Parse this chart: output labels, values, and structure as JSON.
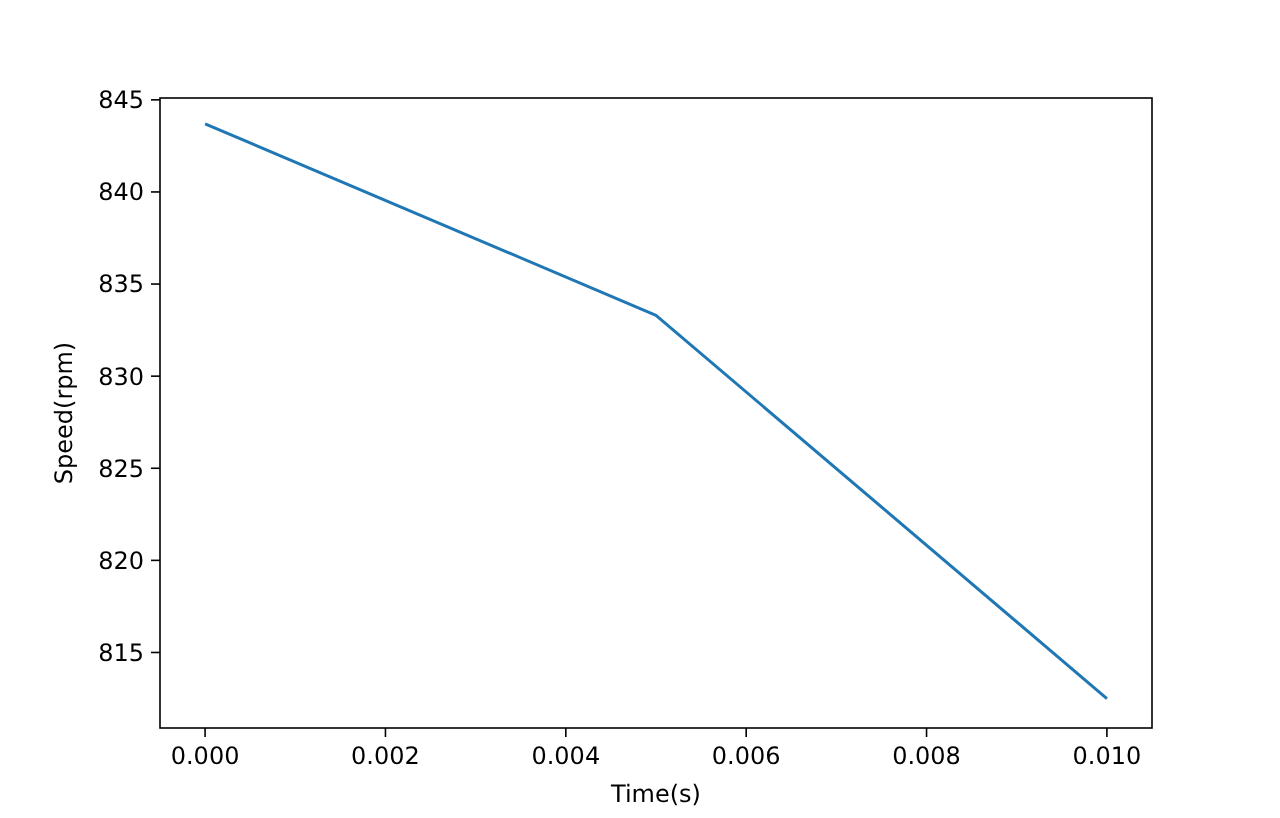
{
  "chart_data": {
    "type": "line",
    "xlabel": "Time(s)",
    "ylabel": "Speed(rpm)",
    "x": [
      0,
      0.005,
      0.01
    ],
    "series": [
      {
        "color": "#1f77b4",
        "values": [
          843.7,
          833.3,
          812.5
        ]
      }
    ],
    "xlim": [
      -0.0005,
      0.0105
    ],
    "ylim": [
      810.9,
      845.1
    ],
    "xticks": [
      {
        "value": 0,
        "label": "0.000"
      },
      {
        "value": 0.002,
        "label": "0.002"
      },
      {
        "value": 0.004,
        "label": "0.004"
      },
      {
        "value": 0.006,
        "label": "0.006"
      },
      {
        "value": 0.008,
        "label": "0.008"
      },
      {
        "value": 0.01,
        "label": "0.010"
      }
    ],
    "yticks": [
      815,
      820,
      825,
      830,
      835,
      840,
      845
    ],
    "grid": false,
    "marker": "none",
    "line_style": "solid"
  }
}
